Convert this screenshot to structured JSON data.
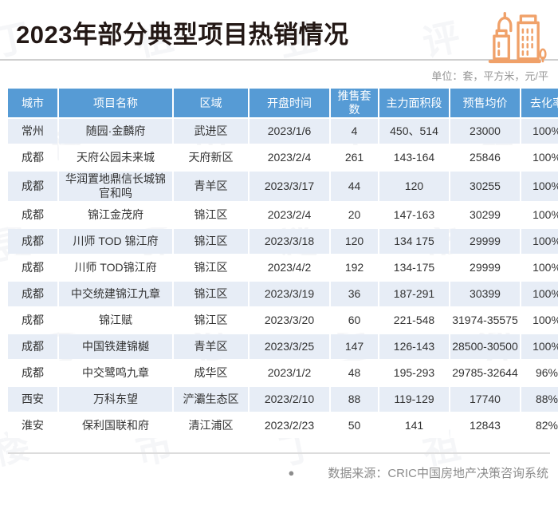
{
  "title": "2023年部分典型项目热销情况",
  "unit_note": "单位：套，平方米，元/平",
  "watermark": {
    "text": "丁祖昱评楼市"
  },
  "icon": {
    "name": "city-buildings-icon",
    "color": "#F0A169"
  },
  "colors": {
    "header_bg": "#569BD5",
    "row_alt_bg": "#E7EDF6",
    "title_color": "#231815",
    "muted_text": "#8C8C8C",
    "icon_orange": "#F0A169"
  },
  "chart_data": {
    "type": "table",
    "title": "2023年部分典型项目热销情况",
    "columns": [
      "城市",
      "项目名称",
      "区域",
      "开盘时间",
      "推售套数",
      "主力面积段",
      "预售均价",
      "去化率"
    ],
    "rows": [
      [
        "常州",
        "随园·金麟府",
        "武进区",
        "2023/1/6",
        "4",
        "450、514",
        "23000",
        "100%"
      ],
      [
        "成都",
        "天府公园未来城",
        "天府新区",
        "2023/2/4",
        "261",
        "143-164",
        "25846",
        "100%"
      ],
      [
        "成都",
        "华润置地鼎信长城锦官和鸣",
        "青羊区",
        "2023/3/17",
        "44",
        "120",
        "30255",
        "100%"
      ],
      [
        "成都",
        "锦江金茂府",
        "锦江区",
        "2023/2/4",
        "20",
        "147-163",
        "30299",
        "100%"
      ],
      [
        "成都",
        "川师 TOD 锦江府",
        "锦江区",
        "2023/3/18",
        "120",
        "134 175",
        "29999",
        "100%"
      ],
      [
        "成都",
        "川师 TOD锦江府",
        "锦江区",
        "2023/4/2",
        "192",
        "134-175",
        "29999",
        "100%"
      ],
      [
        "成都",
        "中交统建锦江九章",
        "锦江区",
        "2023/3/19",
        "36",
        "187-291",
        "30399",
        "100%"
      ],
      [
        "成都",
        "锦江赋",
        "锦江区",
        "2023/3/20",
        "60",
        "221-548",
        "31974-35575",
        "100%"
      ],
      [
        "成都",
        "中国铁建锦樾",
        "青羊区",
        "2023/3/25",
        "147",
        "126-143",
        "28500-30500",
        "100%"
      ],
      [
        "成都",
        "中交鹭鸣九章",
        "成华区",
        "2023/1/2",
        "48",
        "195-293",
        "29785-32644",
        "96%"
      ],
      [
        "西安",
        "万科东望",
        "浐灞生态区",
        "2023/2/10",
        "88",
        "119-129",
        "17740",
        "88%"
      ],
      [
        "淮安",
        "保利国联和府",
        "清江浦区",
        "2023/2/23",
        "50",
        "141",
        "12843",
        "82%"
      ]
    ]
  },
  "footer": {
    "bullet": "●",
    "source": "数据来源：CRIC中国房地产决策咨询系统"
  }
}
